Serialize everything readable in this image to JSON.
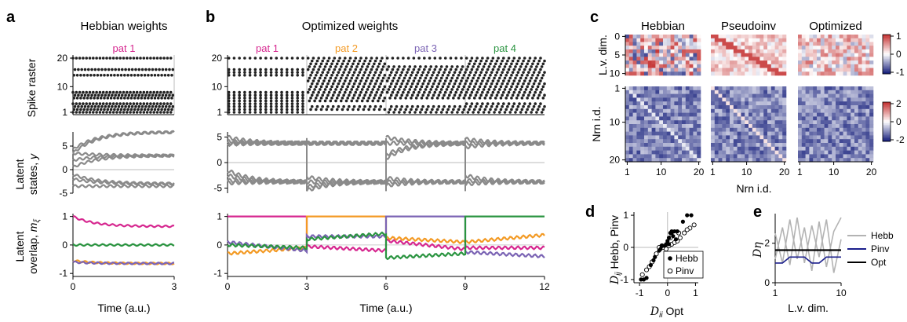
{
  "panel_letters": [
    "a",
    "b",
    "c",
    "d",
    "e"
  ],
  "panel_titles": {
    "a": "Hebbian weights",
    "b": "Optimized weights"
  },
  "colors": {
    "pat1": "#d6278f",
    "pat2": "#f39a24",
    "pat3": "#7b64b4",
    "pat4": "#2a9440",
    "latent": "#8a8a8a",
    "hebb": "#b3b3b3",
    "pinv": "#1b1f8c",
    "opt": "#000000",
    "heat_pos": "#c62828",
    "heat_neg": "#1a237e"
  },
  "chart_data": [
    {
      "id": "a-raster",
      "type": "scatter",
      "title": "Hebbian weights",
      "pattern_labels": [
        "pat 1"
      ],
      "ylabel": "Spike raster",
      "yticks": [
        "1",
        "10",
        "20"
      ],
      "ylim": [
        1,
        20
      ],
      "xlim": [
        0,
        3
      ],
      "active_neurons": [
        1,
        2,
        3,
        4,
        6,
        7,
        8,
        14,
        16,
        20
      ],
      "spike_interval": 0.1
    },
    {
      "id": "a-latent",
      "type": "line",
      "ylabel": "Latent states, y",
      "yticks": [
        "-5",
        "0",
        "5"
      ],
      "ylim": [
        -5,
        8
      ],
      "xlim": [
        0,
        3
      ],
      "series": [
        {
          "values_start": 3.5,
          "values_end": 8.0
        },
        {
          "values_start": 4.3,
          "values_end": 8.0
        },
        {
          "values_start": 2.0,
          "values_end": 3.0
        },
        {
          "values_start": 3.5,
          "values_end": 3.0
        },
        {
          "values_start": -1.0,
          "values_end": -3.0
        },
        {
          "values_start": -2.0,
          "values_end": -3.0
        },
        {
          "values_start": -3.5,
          "values_end": -3.5
        },
        {
          "values_start": 0.5,
          "values_end": 3.0
        }
      ]
    },
    {
      "id": "a-overlap",
      "type": "line",
      "ylabel": "Latent overlap, m_ξ",
      "xlabel": "Time (a.u.)",
      "yticks": [
        "-1",
        "0",
        "1"
      ],
      "xticks": [
        "0",
        "3"
      ],
      "ylim": [
        -1,
        1
      ],
      "xlim": [
        0,
        3
      ],
      "series": [
        {
          "color": "#d6278f",
          "values_start": 1.0,
          "values_end": 0.65
        },
        {
          "color": "#2a9440",
          "values_start": 0.0,
          "values_end": 0.0
        },
        {
          "color": "#f39a24",
          "values_start": -0.55,
          "values_end": -0.65
        },
        {
          "color": "#7b64b4",
          "values_start": -0.6,
          "values_end": -0.65
        }
      ]
    },
    {
      "id": "b-raster",
      "type": "scatter",
      "title": "Optimized weights",
      "pattern_labels": [
        "pat 1",
        "pat 2",
        "pat 3",
        "pat 4"
      ],
      "ylabel": "",
      "yticks": [
        "1",
        "10",
        "20"
      ],
      "ylim": [
        1,
        20
      ],
      "xlim": [
        0,
        12
      ]
    },
    {
      "id": "b-latent",
      "type": "line",
      "yticks": [
        "-5",
        "0",
        "5"
      ],
      "ylim": [
        -6,
        6
      ],
      "xlim": [
        0,
        12
      ],
      "segments": [
        {
          "t0": 0,
          "t1": 3,
          "up": [
            5.0,
            4.2,
            3.8,
            3.6
          ],
          "down": [
            -1.5,
            -2.5,
            -3.5,
            -4.0
          ]
        },
        {
          "t0": 3,
          "t1": 6,
          "up": [
            3.8,
            3.8,
            3.8
          ],
          "down": [
            -2.8,
            -3.8,
            -4.8,
            -5.5
          ]
        },
        {
          "t0": 6,
          "t1": 9,
          "up": [
            5.0,
            3.8,
            1.5,
            0.8
          ],
          "down": [
            -3.0,
            -3.8,
            -4.5
          ]
        },
        {
          "t0": 9,
          "t1": 12,
          "up": [
            4.6,
            3.8,
            3.0
          ],
          "down": [
            -2.5,
            -3.5,
            -4.2
          ]
        }
      ]
    },
    {
      "id": "b-overlap",
      "type": "line",
      "xlabel": "Time (a.u.)",
      "yticks": [
        "-1",
        "0",
        "1"
      ],
      "xticks": [
        "0",
        "3",
        "6",
        "9",
        "12"
      ],
      "ylim": [
        -1,
        1
      ],
      "xlim": [
        0,
        12
      ],
      "segments": [
        {
          "t0": 0,
          "t1": 3,
          "values": {
            "pat1": [
              1.0,
              1.0
            ],
            "pat2": [
              -0.3,
              -0.1
            ],
            "pat3": [
              0.1,
              -0.2
            ],
            "pat4": [
              0.0,
              -0.1
            ]
          }
        },
        {
          "t0": 3,
          "t1": 6,
          "values": {
            "pat1": [
              -0.05,
              -0.2
            ],
            "pat2": [
              1.0,
              1.0
            ],
            "pat3": [
              0.3,
              0.3
            ],
            "pat4": [
              0.2,
              0.4
            ]
          }
        },
        {
          "t0": 6,
          "t1": 9,
          "values": {
            "pat1": [
              0.15,
              -0.15
            ],
            "pat2": [
              0.25,
              0.1
            ],
            "pat3": [
              1.0,
              1.0
            ],
            "pat4": [
              -0.45,
              -0.3
            ]
          }
        },
        {
          "t0": 9,
          "t1": 12,
          "values": {
            "pat1": [
              -0.1,
              -0.1
            ],
            "pat2": [
              0.1,
              0.35
            ],
            "pat3": [
              -0.25,
              -0.4
            ],
            "pat4": [
              1.0,
              1.0
            ]
          }
        }
      ]
    },
    {
      "id": "c-heatmaps",
      "type": "heatmap",
      "column_titles": [
        "Hebbian",
        "Pseudoinv",
        "Optimized"
      ],
      "top_ylabel": "L.v. dim.",
      "top_yticks": [
        "0",
        "5",
        "10"
      ],
      "bottom_ylabel": "Nrn i.d.",
      "bottom_yticks": [
        "1",
        "10",
        "20"
      ],
      "xticks": [
        "1",
        "10",
        "20"
      ],
      "xlabel": "Nrn i.d.",
      "top_colorbar_ticks": [
        "1",
        "0",
        "-1"
      ],
      "top_clim": [
        -1,
        1
      ],
      "bottom_colorbar_ticks": [
        "2",
        "0",
        "-2"
      ],
      "bottom_clim": [
        -2,
        2
      ],
      "top_rows": 11,
      "bottom_rows": 20,
      "cols": 20
    },
    {
      "id": "d-scatter",
      "type": "scatter",
      "ylabel": "D_ij Hebb, Pinv",
      "xlabel": "D_ii Opt",
      "xticks": [
        "-1",
        "0",
        "1"
      ],
      "yticks": [
        "-1",
        "0",
        "1"
      ],
      "xlim": [
        -1.2,
        1.1
      ],
      "ylim": [
        -1.1,
        1.1
      ],
      "legend": [
        "Hebb",
        "Pinv"
      ],
      "series": [
        {
          "name": "Hebb",
          "points": [
            [
              -0.95,
              -1.0
            ],
            [
              -0.85,
              -1.0
            ],
            [
              -0.75,
              -0.95
            ],
            [
              -0.6,
              -0.55
            ],
            [
              -0.5,
              -0.4
            ],
            [
              -0.45,
              -0.3
            ],
            [
              -0.3,
              -0.1
            ],
            [
              -0.2,
              0.05
            ],
            [
              -0.1,
              0.05
            ],
            [
              0.0,
              0.2
            ],
            [
              0.05,
              0.3
            ],
            [
              0.1,
              0.45
            ],
            [
              0.15,
              0.5
            ],
            [
              0.25,
              0.5
            ],
            [
              0.35,
              0.5
            ],
            [
              0.55,
              0.8
            ],
            [
              0.7,
              1.0
            ],
            [
              0.85,
              1.0
            ],
            [
              -0.25,
              -0.05
            ],
            [
              0.05,
              0.1
            ],
            [
              0.2,
              0.35
            ],
            [
              0.3,
              0.25
            ],
            [
              -0.05,
              0.1
            ],
            [
              0.15,
              0.45
            ]
          ]
        },
        {
          "name": "Pinv",
          "points": [
            [
              -0.9,
              -0.85
            ],
            [
              -0.75,
              -0.7
            ],
            [
              -0.55,
              -0.45
            ],
            [
              -0.4,
              -0.2
            ],
            [
              -0.3,
              0.0
            ],
            [
              -0.15,
              0.0
            ],
            [
              -0.05,
              -0.05
            ],
            [
              0.05,
              0.05
            ],
            [
              0.15,
              0.1
            ],
            [
              0.25,
              0.15
            ],
            [
              0.35,
              0.2
            ],
            [
              0.45,
              0.3
            ],
            [
              0.6,
              0.45
            ],
            [
              0.8,
              0.6
            ],
            [
              0.95,
              0.7
            ],
            [
              -0.65,
              -0.6
            ],
            [
              -0.2,
              0.05
            ],
            [
              0.1,
              0.3
            ],
            [
              0.4,
              0.45
            ],
            [
              0.7,
              0.55
            ]
          ]
        }
      ]
    },
    {
      "id": "e-lines",
      "type": "line",
      "ylabel": "Dη",
      "xlabel": "L.v. dim.",
      "xticks": [
        "1",
        "10"
      ],
      "yticks": [
        "0",
        "2"
      ],
      "xlim": [
        1,
        10
      ],
      "ylim": [
        0,
        3.5
      ],
      "legend": [
        "Hebb",
        "Pinv",
        "Opt"
      ],
      "series": [
        {
          "name": "Hebb",
          "x": [
            1,
            2,
            3,
            4,
            5,
            6,
            7,
            8,
            9,
            10
          ],
          "values": [
            2.5,
            1.0,
            3.2,
            1.2,
            2.8,
            0.6,
            3.1,
            0.8,
            2.6,
            3.3
          ]
        },
        {
          "name": "Hebb",
          "x": [
            1,
            2,
            3,
            4,
            5,
            6,
            7,
            8,
            9,
            10
          ],
          "values": [
            1.2,
            2.8,
            0.9,
            3.3,
            1.0,
            2.9,
            1.3,
            3.2,
            0.5,
            2.2
          ]
        },
        {
          "name": "Pinv",
          "x": [
            1,
            2,
            3,
            4,
            5,
            6,
            7,
            8,
            9,
            10
          ],
          "values": [
            1.0,
            1.0,
            1.3,
            1.3,
            1.3,
            1.0,
            1.0,
            1.3,
            1.3,
            1.3
          ]
        },
        {
          "name": "Opt",
          "x": [
            1,
            2,
            3,
            4,
            5,
            6,
            7,
            8,
            9,
            10
          ],
          "values": [
            1.65,
            1.65,
            1.65,
            1.65,
            1.65,
            1.65,
            1.65,
            1.65,
            1.65,
            1.65
          ]
        }
      ]
    }
  ]
}
